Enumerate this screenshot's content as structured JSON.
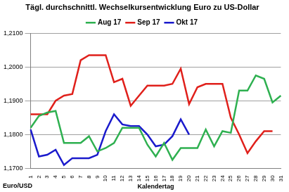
{
  "chart_data": {
    "type": "line",
    "title": "Tägl. durchschnittl. Wechselkursentwicklung Euro zu US-Dollar",
    "x_label": "Kalendertag",
    "y_label": "Euro/USD",
    "categories": [
      "1",
      "2",
      "3",
      "4",
      "5",
      "6",
      "7",
      "8",
      "9",
      "10",
      "11",
      "12",
      "13",
      "14",
      "15",
      "16",
      "17",
      "18",
      "19",
      "20",
      "21",
      "22",
      "23",
      "24",
      "25",
      "26",
      "27",
      "28",
      "29",
      "30",
      "31"
    ],
    "series": [
      {
        "name": "Aug 17",
        "color": "#2eb050",
        "values": [
          1.182,
          1.1855,
          1.1865,
          1.187,
          1.1775,
          1.1775,
          1.1775,
          1.1795,
          1.175,
          1.176,
          1.1775,
          1.182,
          1.182,
          1.182,
          1.177,
          1.1735,
          1.1775,
          1.1725,
          1.176,
          1.176,
          1.176,
          1.1815,
          1.1765,
          1.181,
          1.1805,
          1.193,
          1.193,
          1.1975,
          1.1965,
          1.1895,
          1.1915
        ]
      },
      {
        "name": "Sep 17",
        "color": "#e0201b",
        "values": [
          1.186,
          1.186,
          1.186,
          1.19,
          1.1915,
          1.192,
          1.202,
          1.2035,
          1.2035,
          1.2035,
          1.1955,
          1.1965,
          1.1885,
          1.1915,
          1.1945,
          1.1945,
          1.1945,
          1.195,
          1.1995,
          1.189,
          1.194,
          1.195,
          1.195,
          1.195,
          1.185,
          1.18,
          1.1745,
          1.178,
          1.181,
          1.181,
          null
        ]
      },
      {
        "name": "Okt 17",
        "color": "#1a1acc",
        "values": [
          1.1815,
          1.1735,
          1.174,
          1.1755,
          1.171,
          1.173,
          1.173,
          1.173,
          1.174,
          1.181,
          1.186,
          1.183,
          1.1825,
          1.1825,
          1.18,
          1.1765,
          1.177,
          1.1795,
          1.1845,
          1.18,
          null,
          null,
          null,
          null,
          null,
          null,
          null,
          null,
          null,
          null,
          null
        ]
      }
    ],
    "ylim": [
      1.17,
      1.21
    ],
    "yticks": [
      {
        "value": 1.17,
        "label": "1,1700"
      },
      {
        "value": 1.18,
        "label": "1,1800"
      },
      {
        "value": 1.19,
        "label": "1,1900"
      },
      {
        "value": 1.2,
        "label": "1,2000"
      },
      {
        "value": 1.21,
        "label": "1,2100"
      }
    ],
    "grid": true,
    "legend": "top"
  }
}
